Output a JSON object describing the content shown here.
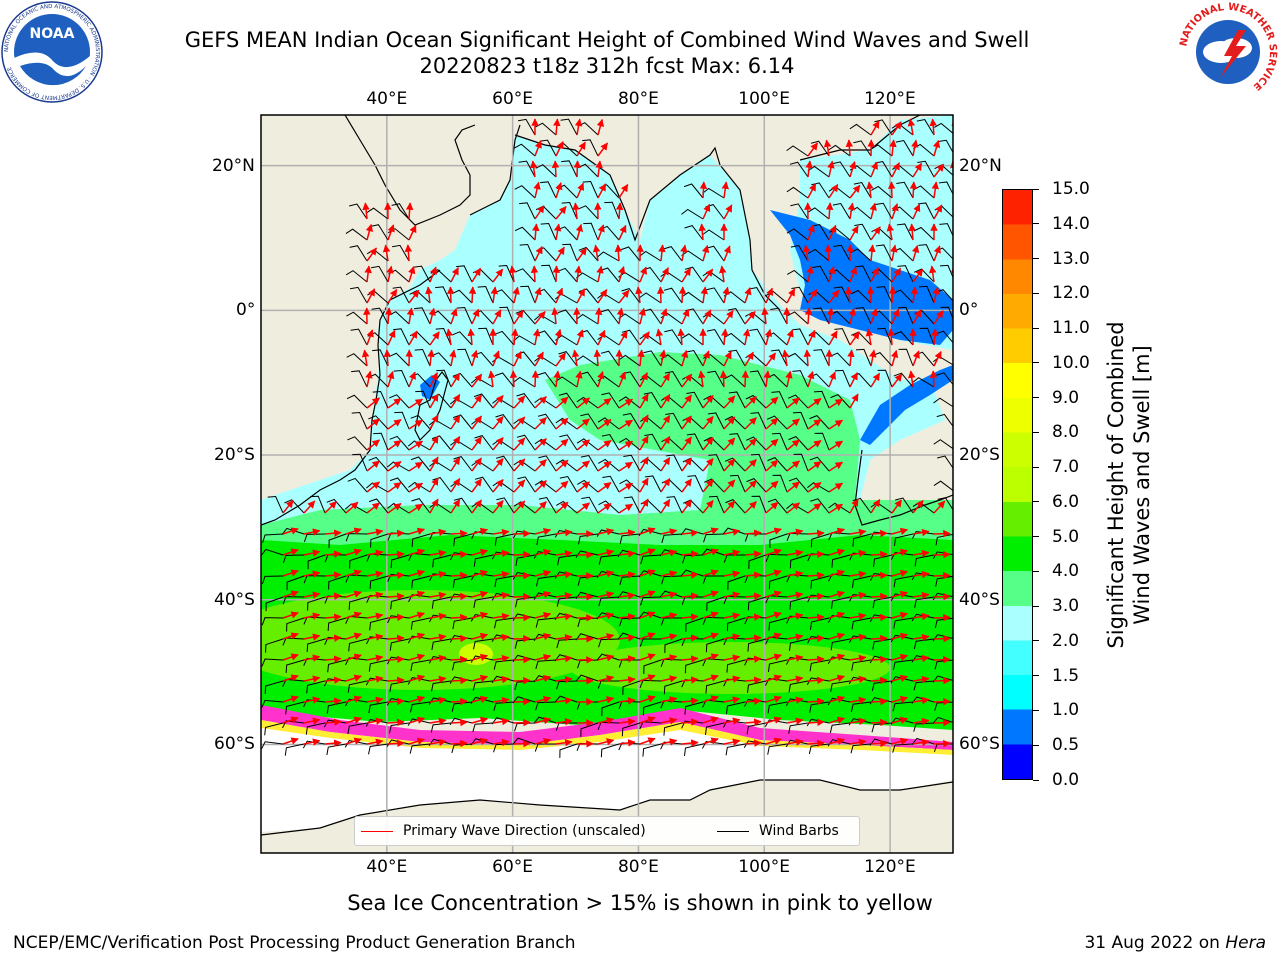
{
  "header": {
    "title_line1": "GEFS MEAN Indian Ocean Significant Height of Combined Wind Waves and Swell",
    "title_line2": "20220823 t18z 312h fcst   Max: 6.14"
  },
  "logos": {
    "left": {
      "name": "noaa-logo",
      "text": "NOAA",
      "ring_text": "NATIONAL OCEANIC AND ATMOSPHERIC ADMINISTRATION · U.S. DEPARTMENT OF COMMERCE"
    },
    "right": {
      "name": "nws-logo",
      "ring_text": "NATIONAL WEATHER SERVICE"
    }
  },
  "map": {
    "lon_range": [
      20,
      130
    ],
    "lat_range": [
      -75,
      27
    ],
    "lon_ticks": [
      {
        "lon": 40,
        "label": "40°E"
      },
      {
        "lon": 60,
        "label": "60°E"
      },
      {
        "lon": 80,
        "label": "80°E"
      },
      {
        "lon": 100,
        "label": "100°E"
      },
      {
        "lon": 120,
        "label": "120°E"
      }
    ],
    "lat_ticks": [
      {
        "lat": 20,
        "label": "20°N"
      },
      {
        "lat": 0,
        "label": "0°"
      },
      {
        "lat": -20,
        "label": "20°S"
      },
      {
        "lat": -40,
        "label": "40°S"
      },
      {
        "lat": -60,
        "label": "60°S"
      }
    ],
    "colors": {
      "land": "#efedde",
      "ice_pink": "#ff33cc",
      "ice_yellow": "#ffee33",
      "arrow": "#ff0000",
      "barb": "#000000"
    }
  },
  "colorbar": {
    "levels": [
      "0.0",
      "0.5",
      "1.0",
      "1.5",
      "2.0",
      "3.0",
      "4.0",
      "5.0",
      "6.0",
      "7.0",
      "8.0",
      "9.0",
      "10.0",
      "11.0",
      "12.0",
      "13.0",
      "14.0",
      "15.0"
    ],
    "colors": [
      "#0000ff",
      "#0077ff",
      "#00ffff",
      "#44ffff",
      "#aaffff",
      "#55ff88",
      "#00ee00",
      "#66ee00",
      "#bbff00",
      "#ccff00",
      "#eeff00",
      "#ffff00",
      "#ffcc00",
      "#ffaa00",
      "#ff8800",
      "#ff5500",
      "#ff2200"
    ],
    "title_line1": "Significant Height of Combined",
    "title_line2": "Wind Waves and Swell [m]"
  },
  "legend": {
    "wave_direction": "Primary Wave Direction (unscaled)",
    "wind_barbs": "Wind Barbs"
  },
  "note": "Sea Ice Concentration > 15% is shown in pink to yellow",
  "footer": {
    "left": "NCEP/EMC/Verification Post Processing Product Generation Branch",
    "date": "31 Aug 2022 on ",
    "host": "Hera"
  }
}
